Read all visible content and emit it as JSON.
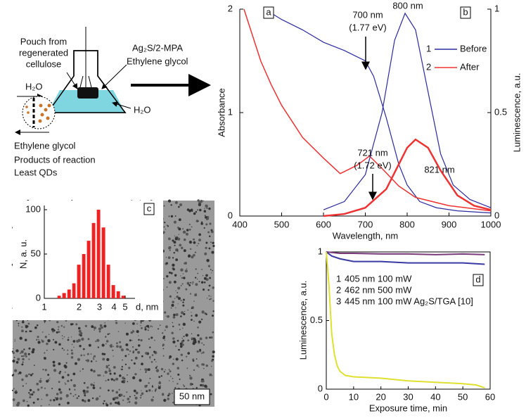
{
  "diagram": {
    "pouch_label": [
      "Pouch from",
      "regenerated",
      "cellulose"
    ],
    "solution_label": [
      "Ag₂S/2-MPA",
      "Ethylene glycol"
    ],
    "water_in": "H₂O",
    "water_out": "H₂O",
    "outflow_labels": [
      "Ethylene glycol",
      "Products of reaction",
      "Least QDs"
    ]
  },
  "image": {
    "scale_label": "50 nm"
  },
  "chart_data": [
    {
      "type": "line",
      "panel_labels": [
        "a",
        "b"
      ],
      "xlabel": "Wavelength, nm",
      "ylabel": "Absorbance",
      "y2label": "Luminescence, a.u.",
      "xlim": [
        400,
        1000
      ],
      "xticks": [
        400,
        500,
        600,
        700,
        800,
        900,
        1000
      ],
      "ylim": [
        0,
        2
      ],
      "yticks": [
        0,
        1,
        2
      ],
      "y2lim": [
        0,
        1
      ],
      "y2ticks": [
        0,
        0.5,
        1
      ],
      "legend": [
        {
          "number": "1",
          "name": "Before",
          "color": "#2b2ba0"
        },
        {
          "number": "2",
          "name": "After",
          "color": "#ee3333"
        }
      ],
      "series": [
        {
          "color": "#2b2ba0",
          "linewidth": 1.2,
          "axis": "y",
          "x": [
            460,
            500,
            550,
            600,
            650,
            700,
            720,
            750,
            780,
            800,
            830,
            870,
            920,
            1000
          ],
          "values": [
            2.0,
            1.9,
            1.8,
            1.68,
            1.6,
            1.5,
            1.35,
            0.95,
            0.5,
            0.3,
            0.14,
            0.08,
            0.05,
            0.03
          ]
        },
        {
          "color": "#ee3333",
          "linewidth": 1.5,
          "axis": "y",
          "x": [
            410,
            430,
            450,
            475,
            500,
            550,
            600,
            640,
            680,
            710,
            740,
            780,
            820,
            900,
            1000
          ],
          "values": [
            2.0,
            1.75,
            1.5,
            1.27,
            1.07,
            0.76,
            0.56,
            0.41,
            0.49,
            0.58,
            0.46,
            0.29,
            0.18,
            0.1,
            0.05
          ]
        },
        {
          "color": "#2b2ba0",
          "linewidth": 1.2,
          "axis": "y2",
          "x": [
            600,
            650,
            700,
            740,
            770,
            795,
            820,
            850,
            880,
            910,
            950,
            1000
          ],
          "values": [
            0.03,
            0.07,
            0.2,
            0.5,
            0.85,
            0.98,
            0.9,
            0.6,
            0.3,
            0.15,
            0.08,
            0.04
          ]
        },
        {
          "color": "#ee3333",
          "linewidth": 2.5,
          "axis": "y2",
          "x": [
            600,
            650,
            700,
            750,
            780,
            800,
            820,
            850,
            880,
            920,
            960,
            1000
          ],
          "values": [
            0,
            0.01,
            0.04,
            0.13,
            0.25,
            0.33,
            0.37,
            0.33,
            0.22,
            0.1,
            0.05,
            0.03
          ]
        }
      ],
      "annotations": [
        {
          "lines": [
            "700 nm",
            "(1.77 eV)"
          ]
        },
        {
          "lines": [
            "800 nm"
          ]
        },
        {
          "lines": [
            "721 nm",
            "(1.72 eV)"
          ]
        },
        {
          "lines": [
            "821 nm"
          ]
        }
      ]
    },
    {
      "type": "histogram",
      "panel_label": "c",
      "xlabel": "d, nm",
      "ylabel": "N, a. u.",
      "xscale": "log",
      "color": "#ee2222",
      "xlim": [
        1,
        5
      ],
      "xticks": [
        1,
        2,
        3,
        4,
        5
      ],
      "ylim": [
        0,
        100
      ],
      "yticks": [
        0,
        50,
        100
      ],
      "bins": [
        1.28,
        1.41,
        1.56,
        1.72,
        1.89,
        2.09,
        2.3,
        2.54,
        2.8,
        3.09,
        3.41,
        3.76,
        4.15,
        4.58,
        5.05
      ],
      "values": [
        3,
        6,
        10,
        17,
        38,
        50,
        65,
        85,
        100,
        80,
        38,
        15,
        8,
        3
      ]
    },
    {
      "type": "line",
      "panel_label": "d",
      "xlabel": "Exposure time, min",
      "ylabel": "Luminescence, a.u.",
      "xlim": [
        0,
        60
      ],
      "xticks": [
        0,
        10,
        20,
        30,
        40,
        50,
        60
      ],
      "ylim": [
        0,
        1
      ],
      "yticks": [
        0,
        0.5,
        1
      ],
      "series": [
        {
          "number": "1",
          "name": "405 nm 100 mW",
          "color": "#7a3a7a",
          "x": [
            0,
            5,
            10,
            20,
            30,
            40,
            50,
            58
          ],
          "values": [
            1,
            0.99,
            0.99,
            0.985,
            0.985,
            0.98,
            0.985,
            0.98
          ]
        },
        {
          "number": "2",
          "name": "462 nm 500 mW",
          "color": "#3a3aa5",
          "x": [
            0,
            2,
            5,
            10,
            20,
            30,
            40,
            50,
            58
          ],
          "values": [
            1,
            0.97,
            0.95,
            0.93,
            0.93,
            0.92,
            0.92,
            0.92,
            0.91
          ]
        },
        {
          "number": "3",
          "name": "445 nm 100 mW Ag₂S/TGA [10]",
          "color": "#dfe030",
          "x": [
            0,
            1,
            2,
            3,
            4,
            5,
            7,
            10,
            20,
            30,
            40,
            50,
            55,
            58
          ],
          "values": [
            1,
            0.75,
            0.4,
            0.25,
            0.17,
            0.13,
            0.1,
            0.09,
            0.08,
            0.06,
            0.05,
            0.04,
            0.03,
            0.01
          ]
        }
      ]
    }
  ]
}
